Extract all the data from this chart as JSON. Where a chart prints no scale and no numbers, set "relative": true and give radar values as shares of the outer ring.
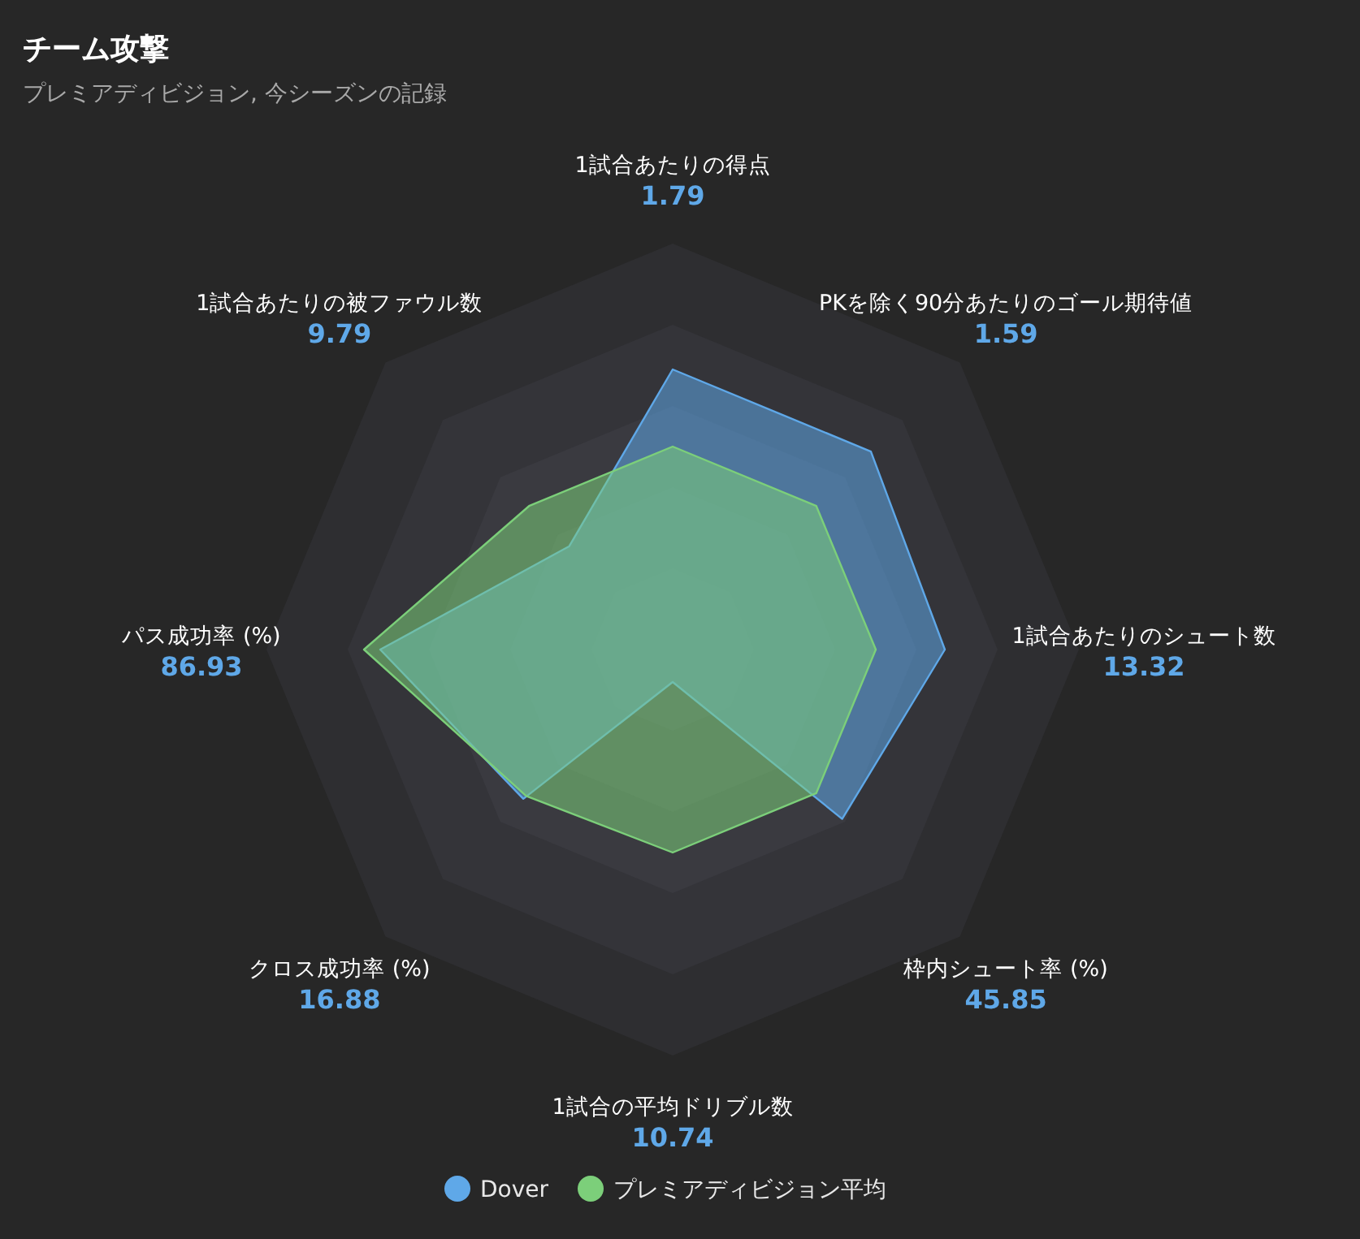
{
  "chart_data": {
    "type": "radar",
    "title": "チーム攻撃",
    "subtitle": "プレミアディビジョン, 今シーズンの記録",
    "relative": true,
    "legend": "bottom",
    "annotations": [
      "1.79",
      "1.59",
      "13.32",
      "45.85",
      "10.74",
      "16.88",
      "86.93",
      "9.79"
    ],
    "categories": [
      "1試合あたりの得点",
      "PKを除く90分あたりのゴール期待値",
      "1試合あたりのシュート数",
      "枠内シュート率 (%)",
      "1試合の平均ドリブル数",
      "クロス成功率 (%)",
      "パス成功率 (%)",
      "1試合あたりの被ファウル数"
    ],
    "series": [
      {
        "name": "Dover",
        "color": "#5fa8e8",
        "values": [
          0.69,
          0.69,
          0.67,
          0.59,
          0.08,
          0.52,
          0.72,
          0.36
        ]
      },
      {
        "name": "プレミアディビジョン平均",
        "color": "#7ccf7a",
        "values": [
          0.5,
          0.5,
          0.5,
          0.5,
          0.5,
          0.51,
          0.76,
          0.5
        ]
      }
    ]
  }
}
